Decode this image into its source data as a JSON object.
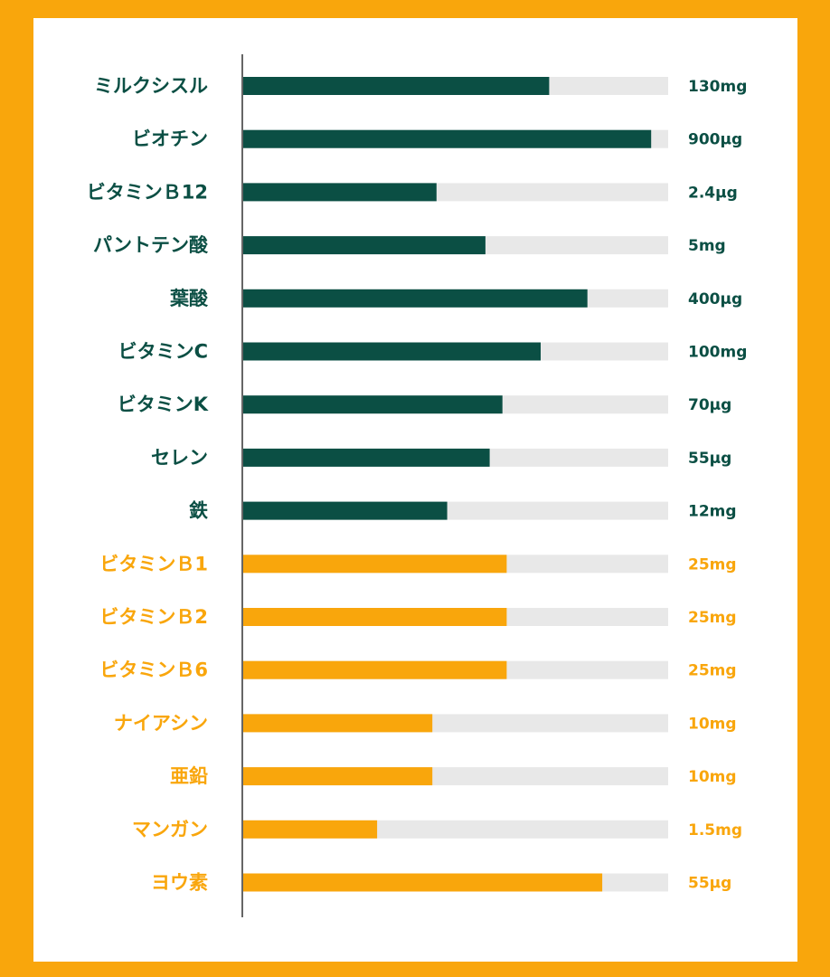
{
  "colors": {
    "page_background": "#f9a60c",
    "panel": "#ffffff",
    "track": "#e8e8e8",
    "green": "#0b4f44",
    "orange": "#f9a60c",
    "axis": "#333333"
  },
  "chart_data": {
    "type": "bar",
    "orientation": "horizontal",
    "title": "",
    "xlabel": "",
    "ylabel": "",
    "xlim": [
      0,
      1
    ],
    "grid": false,
    "bars": [
      {
        "label": "ミルクシスル",
        "value_text": "130mg",
        "fill": 0.72,
        "group": "green"
      },
      {
        "label": "ビオチン",
        "value_text": "900µg",
        "fill": 0.96,
        "group": "green"
      },
      {
        "label": "ビタミンＢ12",
        "value_text": "2.4µg",
        "fill": 0.455,
        "group": "green"
      },
      {
        "label": "パントテン酸",
        "value_text": "5mg",
        "fill": 0.57,
        "group": "green"
      },
      {
        "label": "葉酸",
        "value_text": "400µg",
        "fill": 0.81,
        "group": "green"
      },
      {
        "label": "ビタミンC",
        "value_text": "100mg",
        "fill": 0.7,
        "group": "green"
      },
      {
        "label": "ビタミンK",
        "value_text": "70µg",
        "fill": 0.61,
        "group": "green"
      },
      {
        "label": "セレン",
        "value_text": "55µg",
        "fill": 0.58,
        "group": "green"
      },
      {
        "label": "鉄",
        "value_text": "12mg",
        "fill": 0.48,
        "group": "green"
      },
      {
        "label": "ビタミンＢ1",
        "value_text": "25mg",
        "fill": 0.62,
        "group": "orange"
      },
      {
        "label": "ビタミンＢ2",
        "value_text": "25mg",
        "fill": 0.62,
        "group": "orange"
      },
      {
        "label": "ビタミンＢ6",
        "value_text": "25mg",
        "fill": 0.62,
        "group": "orange"
      },
      {
        "label": "ナイアシン",
        "value_text": "10mg",
        "fill": 0.445,
        "group": "orange"
      },
      {
        "label": "亜鉛",
        "value_text": "10mg",
        "fill": 0.445,
        "group": "orange"
      },
      {
        "label": "マンガン",
        "value_text": "1.5mg",
        "fill": 0.315,
        "group": "orange"
      },
      {
        "label": "ヨウ素",
        "value_text": "55µg",
        "fill": 0.845,
        "group": "orange"
      }
    ]
  }
}
